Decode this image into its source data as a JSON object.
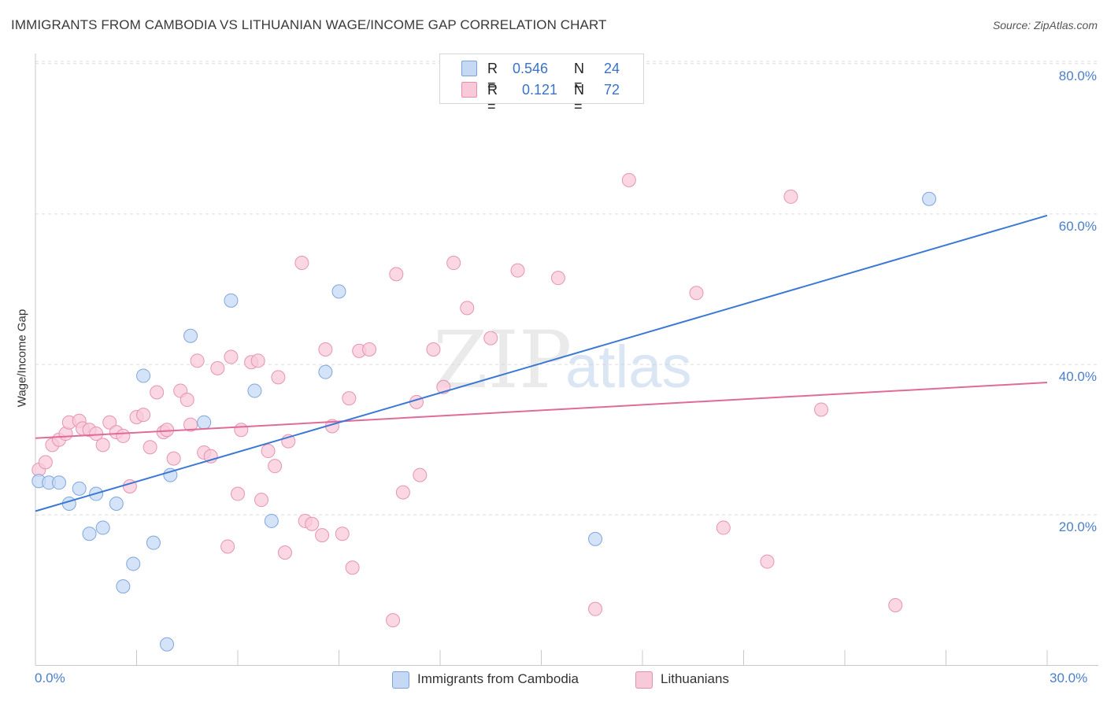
{
  "title": "IMMIGRANTS FROM CAMBODIA VS LITHUANIAN WAGE/INCOME GAP CORRELATION CHART",
  "source": "Source: ZipAtlas.com",
  "watermark": {
    "zip": "ZIP",
    "atlas": "atlas"
  },
  "colors": {
    "blue": "#3a78d4",
    "blue_fill": "#c5d9f5",
    "pink": "#e06b98",
    "pink_fill": "#f8c9d8",
    "axis_text": "#4a7fcc"
  },
  "legend": {
    "rows": [
      {
        "r_label": "R =",
        "r_value": "0.546",
        "n_label": "N =",
        "n_value": "24"
      },
      {
        "r_label": "R =",
        "r_value": "0.121",
        "n_label": "N =",
        "n_value": "72"
      }
    ]
  },
  "chart_data": {
    "type": "scatter",
    "title": "IMMIGRANTS FROM CAMBODIA VS LITHUANIAN WAGE/INCOME GAP CORRELATION CHART",
    "xlabel": "",
    "ylabel": "Wage/Income Gap",
    "xlim": [
      0,
      30
    ],
    "ylim": [
      0,
      85
    ],
    "x_ticks": [
      "0.0%",
      "30.0%"
    ],
    "y_ticks": [
      "20.0%",
      "40.0%",
      "60.0%",
      "80.0%"
    ],
    "y_tick_values": [
      20,
      40,
      60,
      80
    ],
    "grid": true,
    "legend_position": "top-center",
    "series": [
      {
        "name": "Immigrants from Cambodia",
        "trend": {
          "x": [
            0,
            30
          ],
          "y": [
            20.5,
            59.8
          ]
        },
        "points": [
          {
            "x": 0.1,
            "y": 24.5
          },
          {
            "x": 0.4,
            "y": 24.3
          },
          {
            "x": 0.7,
            "y": 24.3
          },
          {
            "x": 1.0,
            "y": 21.5
          },
          {
            "x": 1.3,
            "y": 23.5
          },
          {
            "x": 1.6,
            "y": 17.5
          },
          {
            "x": 1.8,
            "y": 22.8
          },
          {
            "x": 2.0,
            "y": 18.3
          },
          {
            "x": 2.4,
            "y": 21.5
          },
          {
            "x": 2.6,
            "y": 10.5
          },
          {
            "x": 2.9,
            "y": 13.5
          },
          {
            "x": 3.2,
            "y": 38.5
          },
          {
            "x": 3.5,
            "y": 16.3
          },
          {
            "x": 3.9,
            "y": 2.8
          },
          {
            "x": 4.0,
            "y": 25.3
          },
          {
            "x": 4.6,
            "y": 43.8
          },
          {
            "x": 5.0,
            "y": 32.3
          },
          {
            "x": 5.8,
            "y": 48.5
          },
          {
            "x": 6.5,
            "y": 36.5
          },
          {
            "x": 7.0,
            "y": 19.2
          },
          {
            "x": 8.6,
            "y": 39.0
          },
          {
            "x": 9.0,
            "y": 49.7
          },
          {
            "x": 16.6,
            "y": 16.8
          },
          {
            "x": 26.5,
            "y": 62.0
          }
        ]
      },
      {
        "name": "Lithuanians",
        "trend": {
          "x": [
            0,
            30
          ],
          "y": [
            30.2,
            37.6
          ]
        },
        "points": [
          {
            "x": 0.1,
            "y": 26.0
          },
          {
            "x": 0.3,
            "y": 27.0
          },
          {
            "x": 0.5,
            "y": 29.3
          },
          {
            "x": 0.7,
            "y": 30.0
          },
          {
            "x": 0.9,
            "y": 30.8
          },
          {
            "x": 1.0,
            "y": 32.3
          },
          {
            "x": 1.3,
            "y": 32.5
          },
          {
            "x": 1.4,
            "y": 31.5
          },
          {
            "x": 1.6,
            "y": 31.3
          },
          {
            "x": 1.8,
            "y": 30.8
          },
          {
            "x": 2.0,
            "y": 29.3
          },
          {
            "x": 2.2,
            "y": 32.3
          },
          {
            "x": 2.4,
            "y": 31.0
          },
          {
            "x": 2.6,
            "y": 30.5
          },
          {
            "x": 2.8,
            "y": 23.8
          },
          {
            "x": 3.0,
            "y": 33.0
          },
          {
            "x": 3.2,
            "y": 33.3
          },
          {
            "x": 3.4,
            "y": 29.0
          },
          {
            "x": 3.6,
            "y": 36.3
          },
          {
            "x": 3.8,
            "y": 31.0
          },
          {
            "x": 3.9,
            "y": 31.3
          },
          {
            "x": 4.1,
            "y": 27.5
          },
          {
            "x": 4.3,
            "y": 36.5
          },
          {
            "x": 4.5,
            "y": 35.3
          },
          {
            "x": 4.6,
            "y": 32.0
          },
          {
            "x": 4.8,
            "y": 40.5
          },
          {
            "x": 5.0,
            "y": 28.3
          },
          {
            "x": 5.2,
            "y": 27.8
          },
          {
            "x": 5.4,
            "y": 39.5
          },
          {
            "x": 5.7,
            "y": 15.8
          },
          {
            "x": 5.8,
            "y": 41.0
          },
          {
            "x": 6.0,
            "y": 22.8
          },
          {
            "x": 6.1,
            "y": 31.3
          },
          {
            "x": 6.4,
            "y": 40.3
          },
          {
            "x": 6.6,
            "y": 40.5
          },
          {
            "x": 6.7,
            "y": 22.0
          },
          {
            "x": 6.9,
            "y": 28.5
          },
          {
            "x": 7.1,
            "y": 26.5
          },
          {
            "x": 7.2,
            "y": 38.3
          },
          {
            "x": 7.4,
            "y": 15.0
          },
          {
            "x": 7.5,
            "y": 29.8
          },
          {
            "x": 7.9,
            "y": 53.5
          },
          {
            "x": 8.0,
            "y": 19.2
          },
          {
            "x": 8.2,
            "y": 18.8
          },
          {
            "x": 8.5,
            "y": 17.3
          },
          {
            "x": 8.6,
            "y": 42.0
          },
          {
            "x": 8.8,
            "y": 31.8
          },
          {
            "x": 9.1,
            "y": 17.5
          },
          {
            "x": 9.3,
            "y": 35.5
          },
          {
            "x": 9.4,
            "y": 13.0
          },
          {
            "x": 9.6,
            "y": 41.8
          },
          {
            "x": 9.9,
            "y": 42.0
          },
          {
            "x": 10.6,
            "y": 6.0
          },
          {
            "x": 10.7,
            "y": 52.0
          },
          {
            "x": 10.9,
            "y": 23.0
          },
          {
            "x": 11.3,
            "y": 35.0
          },
          {
            "x": 11.4,
            "y": 25.3
          },
          {
            "x": 11.8,
            "y": 42.0
          },
          {
            "x": 12.1,
            "y": 37.0
          },
          {
            "x": 12.4,
            "y": 53.5
          },
          {
            "x": 12.8,
            "y": 47.5
          },
          {
            "x": 13.5,
            "y": 43.5
          },
          {
            "x": 14.3,
            "y": 52.5
          },
          {
            "x": 15.5,
            "y": 51.5
          },
          {
            "x": 16.6,
            "y": 7.5
          },
          {
            "x": 17.6,
            "y": 64.5
          },
          {
            "x": 19.6,
            "y": 49.5
          },
          {
            "x": 20.4,
            "y": 18.3
          },
          {
            "x": 21.7,
            "y": 13.8
          },
          {
            "x": 22.4,
            "y": 62.3
          },
          {
            "x": 23.3,
            "y": 34.0
          },
          {
            "x": 25.5,
            "y": 8.0
          }
        ]
      }
    ]
  },
  "bottom_legend": [
    {
      "label": "Immigrants from Cambodia"
    },
    {
      "label": "Lithuanians"
    }
  ]
}
